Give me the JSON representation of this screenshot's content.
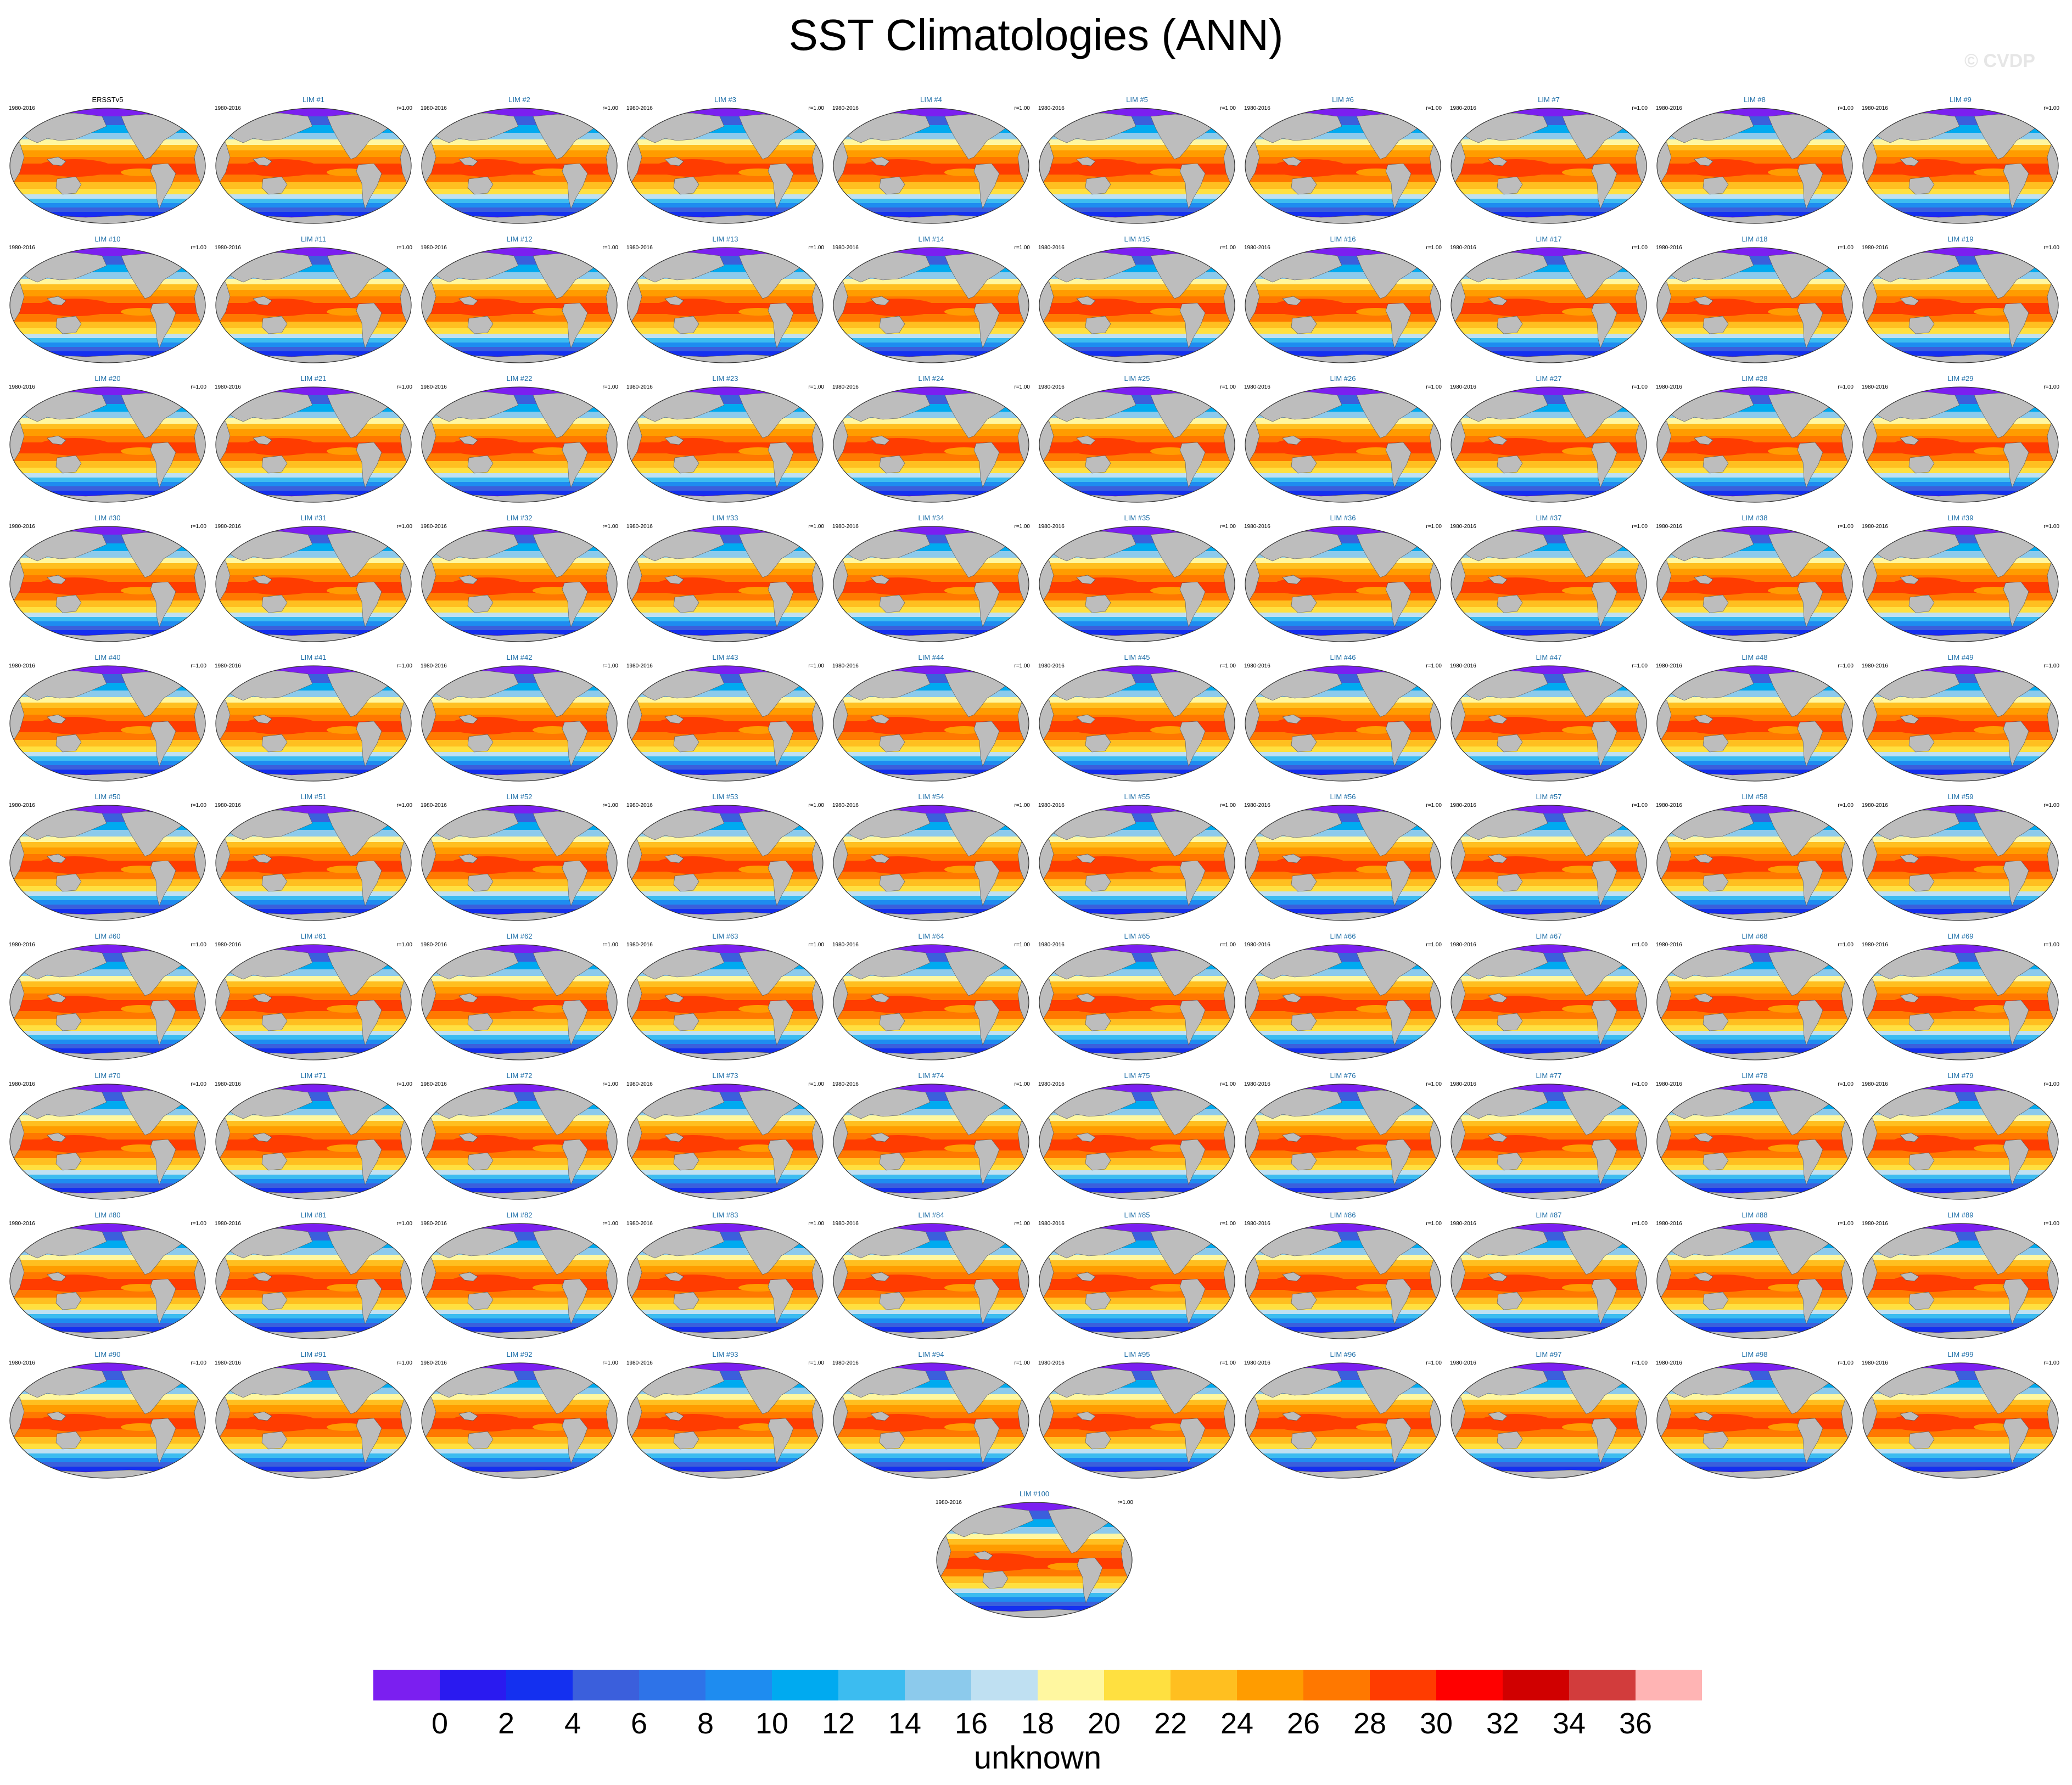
{
  "title": "SST Climatologies (ANN)",
  "watermark": "© CVDP",
  "chart_data": {
    "type": "heatmap",
    "panel_layout": "10 columns by 10 rows plus one centred panel in an 11th row",
    "projection": "Robinson (global, Pacific-centred)",
    "land_color": "#bdbdbd",
    "panels": [
      {
        "title": "ERSSTv5",
        "years": "1980-2016",
        "corr": ""
      },
      {
        "title": "LIM #1",
        "years": "1980-2016",
        "corr": "r=1.00"
      },
      {
        "title": "LIM #2",
        "years": "1980-2016",
        "corr": "r=1.00"
      },
      {
        "title": "LIM #3",
        "years": "1980-2016",
        "corr": "r=1.00"
      },
      {
        "title": "LIM #4",
        "years": "1980-2016",
        "corr": "r=1.00"
      },
      {
        "title": "LIM #5",
        "years": "1980-2016",
        "corr": "r=1.00"
      },
      {
        "title": "LIM #6",
        "years": "1980-2016",
        "corr": "r=1.00"
      },
      {
        "title": "LIM #7",
        "years": "1980-2016",
        "corr": "r=1.00"
      },
      {
        "title": "LIM #8",
        "years": "1980-2016",
        "corr": "r=1.00"
      },
      {
        "title": "LIM #9",
        "years": "1980-2016",
        "corr": "r=1.00"
      },
      {
        "title": "LIM #10",
        "years": "1980-2016",
        "corr": "r=1.00"
      },
      {
        "title": "LIM #11",
        "years": "1980-2016",
        "corr": "r=1.00"
      },
      {
        "title": "LIM #12",
        "years": "1980-2016",
        "corr": "r=1.00"
      },
      {
        "title": "LIM #13",
        "years": "1980-2016",
        "corr": "r=1.00"
      },
      {
        "title": "LIM #14",
        "years": "1980-2016",
        "corr": "r=1.00"
      },
      {
        "title": "LIM #15",
        "years": "1980-2016",
        "corr": "r=1.00"
      },
      {
        "title": "LIM #16",
        "years": "1980-2016",
        "corr": "r=1.00"
      },
      {
        "title": "LIM #17",
        "years": "1980-2016",
        "corr": "r=1.00"
      },
      {
        "title": "LIM #18",
        "years": "1980-2016",
        "corr": "r=1.00"
      },
      {
        "title": "LIM #19",
        "years": "1980-2016",
        "corr": "r=1.00"
      },
      {
        "title": "LIM #20",
        "years": "1980-2016",
        "corr": "r=1.00"
      },
      {
        "title": "LIM #21",
        "years": "1980-2016",
        "corr": "r=1.00"
      },
      {
        "title": "LIM #22",
        "years": "1980-2016",
        "corr": "r=1.00"
      },
      {
        "title": "LIM #23",
        "years": "1980-2016",
        "corr": "r=1.00"
      },
      {
        "title": "LIM #24",
        "years": "1980-2016",
        "corr": "r=1.00"
      },
      {
        "title": "LIM #25",
        "years": "1980-2016",
        "corr": "r=1.00"
      },
      {
        "title": "LIM #26",
        "years": "1980-2016",
        "corr": "r=1.00"
      },
      {
        "title": "LIM #27",
        "years": "1980-2016",
        "corr": "r=1.00"
      },
      {
        "title": "LIM #28",
        "years": "1980-2016",
        "corr": "r=1.00"
      },
      {
        "title": "LIM #29",
        "years": "1980-2016",
        "corr": "r=1.00"
      },
      {
        "title": "LIM #30",
        "years": "1980-2016",
        "corr": "r=1.00"
      },
      {
        "title": "LIM #31",
        "years": "1980-2016",
        "corr": "r=1.00"
      },
      {
        "title": "LIM #32",
        "years": "1980-2016",
        "corr": "r=1.00"
      },
      {
        "title": "LIM #33",
        "years": "1980-2016",
        "corr": "r=1.00"
      },
      {
        "title": "LIM #34",
        "years": "1980-2016",
        "corr": "r=1.00"
      },
      {
        "title": "LIM #35",
        "years": "1980-2016",
        "corr": "r=1.00"
      },
      {
        "title": "LIM #36",
        "years": "1980-2016",
        "corr": "r=1.00"
      },
      {
        "title": "LIM #37",
        "years": "1980-2016",
        "corr": "r=1.00"
      },
      {
        "title": "LIM #38",
        "years": "1980-2016",
        "corr": "r=1.00"
      },
      {
        "title": "LIM #39",
        "years": "1980-2016",
        "corr": "r=1.00"
      },
      {
        "title": "LIM #40",
        "years": "1980-2016",
        "corr": "r=1.00"
      },
      {
        "title": "LIM #41",
        "years": "1980-2016",
        "corr": "r=1.00"
      },
      {
        "title": "LIM #42",
        "years": "1980-2016",
        "corr": "r=1.00"
      },
      {
        "title": "LIM #43",
        "years": "1980-2016",
        "corr": "r=1.00"
      },
      {
        "title": "LIM #44",
        "years": "1980-2016",
        "corr": "r=1.00"
      },
      {
        "title": "LIM #45",
        "years": "1980-2016",
        "corr": "r=1.00"
      },
      {
        "title": "LIM #46",
        "years": "1980-2016",
        "corr": "r=1.00"
      },
      {
        "title": "LIM #47",
        "years": "1980-2016",
        "corr": "r=1.00"
      },
      {
        "title": "LIM #48",
        "years": "1980-2016",
        "corr": "r=1.00"
      },
      {
        "title": "LIM #49",
        "years": "1980-2016",
        "corr": "r=1.00"
      },
      {
        "title": "LIM #50",
        "years": "1980-2016",
        "corr": "r=1.00"
      },
      {
        "title": "LIM #51",
        "years": "1980-2016",
        "corr": "r=1.00"
      },
      {
        "title": "LIM #52",
        "years": "1980-2016",
        "corr": "r=1.00"
      },
      {
        "title": "LIM #53",
        "years": "1980-2016",
        "corr": "r=1.00"
      },
      {
        "title": "LIM #54",
        "years": "1980-2016",
        "corr": "r=1.00"
      },
      {
        "title": "LIM #55",
        "years": "1980-2016",
        "corr": "r=1.00"
      },
      {
        "title": "LIM #56",
        "years": "1980-2016",
        "corr": "r=1.00"
      },
      {
        "title": "LIM #57",
        "years": "1980-2016",
        "corr": "r=1.00"
      },
      {
        "title": "LIM #58",
        "years": "1980-2016",
        "corr": "r=1.00"
      },
      {
        "title": "LIM #59",
        "years": "1980-2016",
        "corr": "r=1.00"
      },
      {
        "title": "LIM #60",
        "years": "1980-2016",
        "corr": "r=1.00"
      },
      {
        "title": "LIM #61",
        "years": "1980-2016",
        "corr": "r=1.00"
      },
      {
        "title": "LIM #62",
        "years": "1980-2016",
        "corr": "r=1.00"
      },
      {
        "title": "LIM #63",
        "years": "1980-2016",
        "corr": "r=1.00"
      },
      {
        "title": "LIM #64",
        "years": "1980-2016",
        "corr": "r=1.00"
      },
      {
        "title": "LIM #65",
        "years": "1980-2016",
        "corr": "r=1.00"
      },
      {
        "title": "LIM #66",
        "years": "1980-2016",
        "corr": "r=1.00"
      },
      {
        "title": "LIM #67",
        "years": "1980-2016",
        "corr": "r=1.00"
      },
      {
        "title": "LIM #68",
        "years": "1980-2016",
        "corr": "r=1.00"
      },
      {
        "title": "LIM #69",
        "years": "1980-2016",
        "corr": "r=1.00"
      },
      {
        "title": "LIM #70",
        "years": "1980-2016",
        "corr": "r=1.00"
      },
      {
        "title": "LIM #71",
        "years": "1980-2016",
        "corr": "r=1.00"
      },
      {
        "title": "LIM #72",
        "years": "1980-2016",
        "corr": "r=1.00"
      },
      {
        "title": "LIM #73",
        "years": "1980-2016",
        "corr": "r=1.00"
      },
      {
        "title": "LIM #74",
        "years": "1980-2016",
        "corr": "r=1.00"
      },
      {
        "title": "LIM #75",
        "years": "1980-2016",
        "corr": "r=1.00"
      },
      {
        "title": "LIM #76",
        "years": "1980-2016",
        "corr": "r=1.00"
      },
      {
        "title": "LIM #77",
        "years": "1980-2016",
        "corr": "r=1.00"
      },
      {
        "title": "LIM #78",
        "years": "1980-2016",
        "corr": "r=1.00"
      },
      {
        "title": "LIM #79",
        "years": "1980-2016",
        "corr": "r=1.00"
      },
      {
        "title": "LIM #80",
        "years": "1980-2016",
        "corr": "r=1.00"
      },
      {
        "title": "LIM #81",
        "years": "1980-2016",
        "corr": "r=1.00"
      },
      {
        "title": "LIM #82",
        "years": "1980-2016",
        "corr": "r=1.00"
      },
      {
        "title": "LIM #83",
        "years": "1980-2016",
        "corr": "r=1.00"
      },
      {
        "title": "LIM #84",
        "years": "1980-2016",
        "corr": "r=1.00"
      },
      {
        "title": "LIM #85",
        "years": "1980-2016",
        "corr": "r=1.00"
      },
      {
        "title": "LIM #86",
        "years": "1980-2016",
        "corr": "r=1.00"
      },
      {
        "title": "LIM #87",
        "years": "1980-2016",
        "corr": "r=1.00"
      },
      {
        "title": "LIM #88",
        "years": "1980-2016",
        "corr": "r=1.00"
      },
      {
        "title": "LIM #89",
        "years": "1980-2016",
        "corr": "r=1.00"
      },
      {
        "title": "LIM #90",
        "years": "1980-2016",
        "corr": "r=1.00"
      },
      {
        "title": "LIM #91",
        "years": "1980-2016",
        "corr": "r=1.00"
      },
      {
        "title": "LIM #92",
        "years": "1980-2016",
        "corr": "r=1.00"
      },
      {
        "title": "LIM #93",
        "years": "1980-2016",
        "corr": "r=1.00"
      },
      {
        "title": "LIM #94",
        "years": "1980-2016",
        "corr": "r=1.00"
      },
      {
        "title": "LIM #95",
        "years": "1980-2016",
        "corr": "r=1.00"
      },
      {
        "title": "LIM #96",
        "years": "1980-2016",
        "corr": "r=1.00"
      },
      {
        "title": "LIM #97",
        "years": "1980-2016",
        "corr": "r=1.00"
      },
      {
        "title": "LIM #98",
        "years": "1980-2016",
        "corr": "r=1.00"
      },
      {
        "title": "LIM #99",
        "years": "1980-2016",
        "corr": "r=1.00"
      },
      {
        "title": "LIM #100",
        "years": "1980-2016",
        "corr": "r=1.00"
      }
    ],
    "colorbar": {
      "labels": [
        "0",
        "2",
        "4",
        "6",
        "8",
        "10",
        "12",
        "14",
        "16",
        "18",
        "20",
        "22",
        "24",
        "26",
        "28",
        "30",
        "32",
        "34",
        "36"
      ],
      "colors": [
        "#7b1ff0",
        "#2a1af0",
        "#1430f0",
        "#3b5fdc",
        "#2e73e8",
        "#1e8cf0",
        "#00aaf0",
        "#3cbcf0",
        "#8ccaec",
        "#bfe0f2",
        "#fff7a0",
        "#ffe040",
        "#ffbf20",
        "#ff9c00",
        "#ff7800",
        "#ff3c00",
        "#ff0000",
        "#d00000",
        "#d23c3c",
        "#ffb4b4"
      ],
      "label": "unknown"
    },
    "title_color_obs": "#000000",
    "title_color_model": "#1f6fa8"
  }
}
